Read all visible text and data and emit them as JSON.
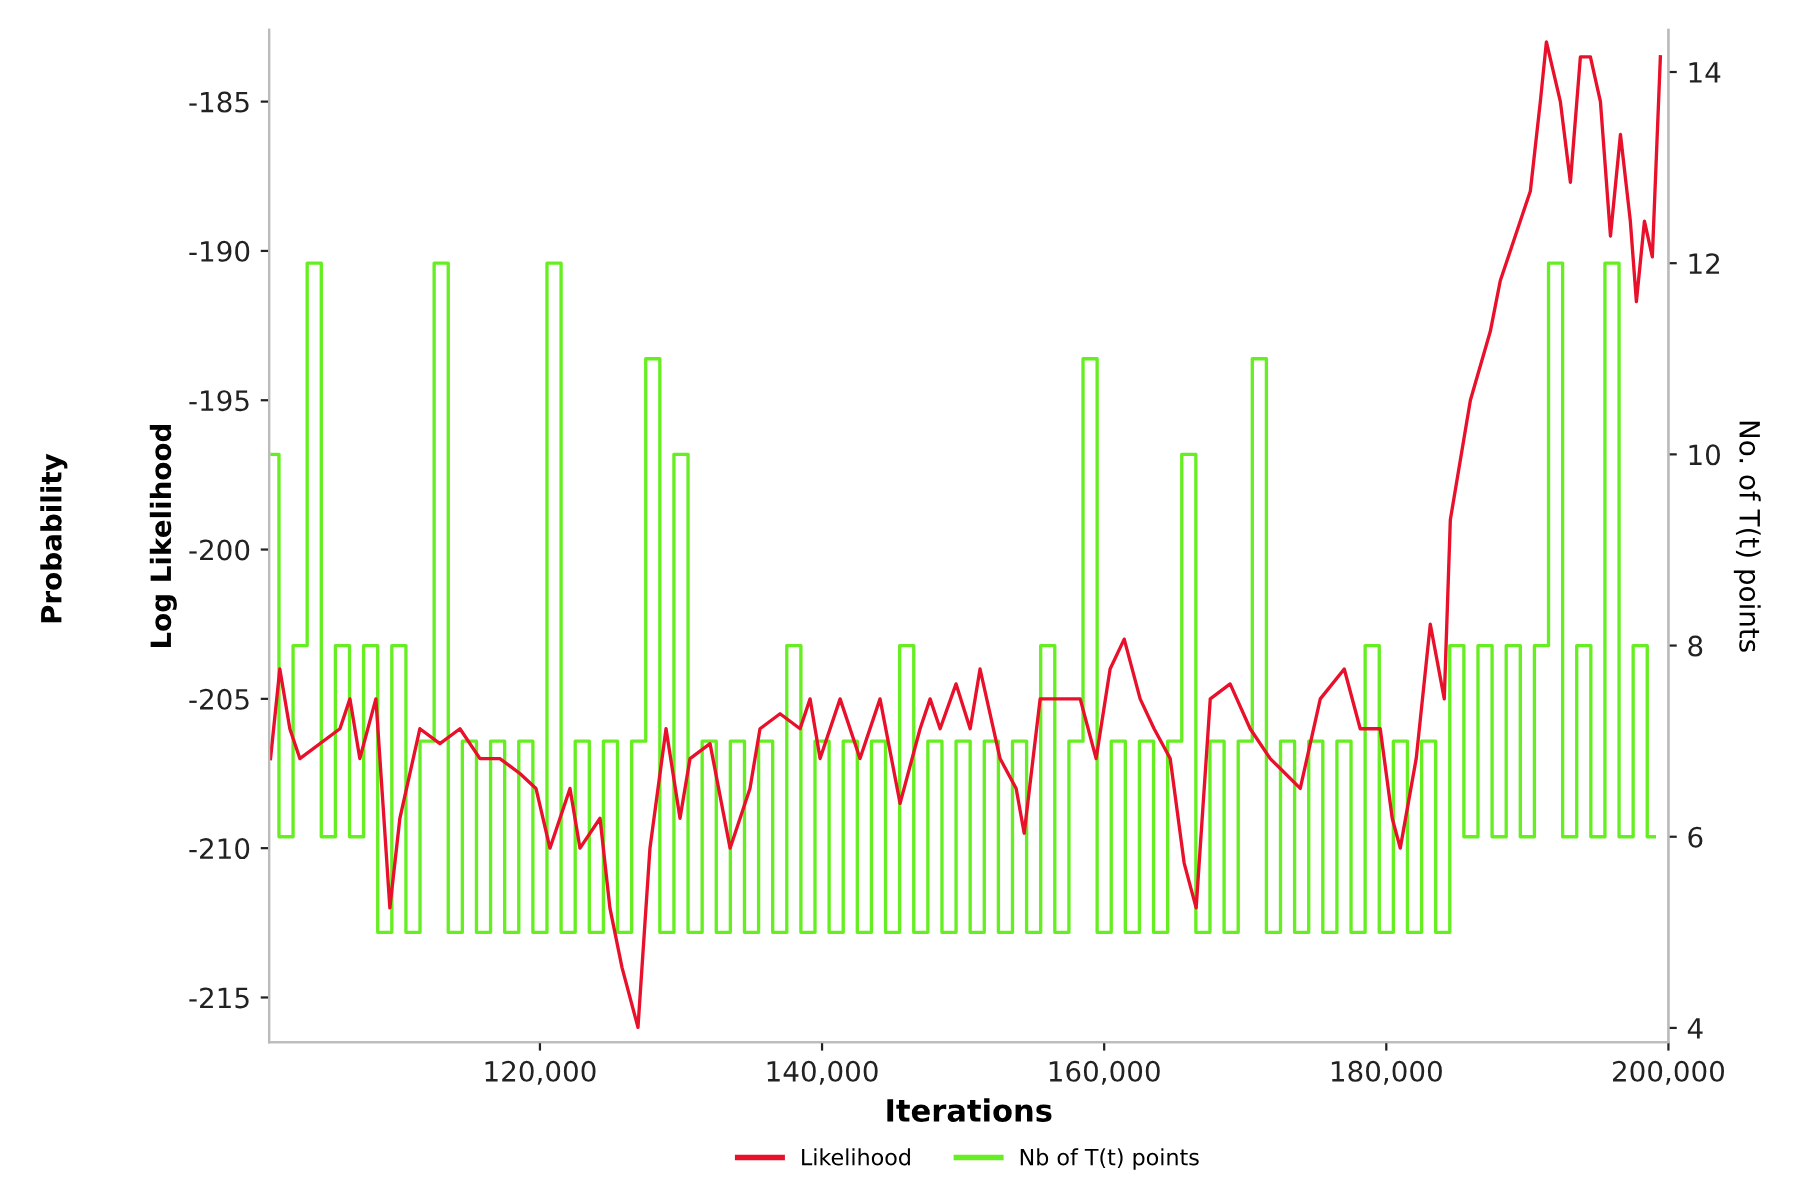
{
  "chart_data": {
    "type": "line",
    "xlabel": "Iterations",
    "ylabel": "Log Likelihood",
    "y2label": "No. of T(t) points",
    "annotations": [
      "Probability"
    ],
    "xlim": [
      100800,
      200000
    ],
    "xticks": [
      {
        "value": 120000,
        "label": "120,000"
      },
      {
        "value": 140000,
        "label": "140,000"
      },
      {
        "value": 160000,
        "label": "160,000"
      },
      {
        "value": 180000,
        "label": "180,000"
      },
      {
        "value": 200000,
        "label": "200,000"
      }
    ],
    "ylim": [
      -216.5,
      -182.6
    ],
    "yticks": [
      -215,
      -210,
      -205,
      -200,
      -195,
      -190,
      -185
    ],
    "y2lim": [
      3.85,
      14.44
    ],
    "y2ticks": [
      4,
      6,
      8,
      10,
      12,
      14
    ],
    "grid": false,
    "legend": "bottom",
    "series": [
      {
        "name": "Likelihood",
        "color": "#e8102a",
        "x": [
          100900,
          101560,
          102270,
          102980,
          105820,
          106530,
          107230,
          108370,
          108940,
          109360,
          110070,
          111490,
          112910,
          114330,
          115750,
          117160,
          118580,
          119720,
          120710,
          122130,
          122840,
          124260,
          124960,
          125820,
          126950,
          127800,
          128940,
          129930,
          130640,
          132060,
          133480,
          134890,
          135600,
          137020,
          138440,
          139150,
          139860,
          141280,
          142690,
          144110,
          145530,
          146950,
          147660,
          148370,
          149500,
          150500,
          151200,
          152620,
          153760,
          154330,
          155460,
          156880,
          158300,
          159430,
          160420,
          161420,
          162550,
          163540,
          164680,
          165670,
          166520,
          167520,
          168930,
          170350,
          171770,
          173900,
          175320,
          177020,
          178150,
          179570,
          180420,
          180990,
          182120,
          183120,
          184110,
          184540,
          185960,
          187370,
          188080,
          189500,
          190210,
          190920,
          191350,
          192340,
          193050,
          193760,
          194470,
          195180,
          195890,
          196600,
          197300,
          197730,
          198300,
          198860,
          199430
        ],
        "values": [
          -207,
          -204,
          -206,
          -207,
          -206,
          -205,
          -207,
          -205,
          -209,
          -212,
          -209,
          -206,
          -206.5,
          -206,
          -207,
          -207,
          -207.5,
          -208,
          -210,
          -208,
          -210,
          -209,
          -212,
          -214,
          -216,
          -210,
          -206,
          -209,
          -207,
          -206.5,
          -210,
          -208,
          -206,
          -205.5,
          -206,
          -205,
          -207,
          -205,
          -207,
          -205,
          -208.5,
          -206,
          -205,
          -206,
          -204.5,
          -206,
          -204,
          -207,
          -208,
          -209.5,
          -205,
          -205,
          -205,
          -207,
          -204,
          -203,
          -205,
          -206,
          -207,
          -210.5,
          -212,
          -205,
          -204.5,
          -206,
          -207,
          -208,
          -205,
          -204,
          -206,
          -206,
          -209,
          -210,
          -207,
          -202.5,
          -205,
          -199,
          -195,
          -192.7,
          -191,
          -189,
          -188,
          -185,
          -183,
          -185,
          -187.7,
          -183.5,
          -183.5,
          -185,
          -189.5,
          -186.1,
          -189,
          -191.7,
          -189,
          -190.2,
          -183.5
        ]
      },
      {
        "name": "Nb of T(t) points",
        "color": "#66ee22",
        "type": "step",
        "axis": "y2",
        "x": [
          101000,
          102000,
          103000,
          104000,
          105000,
          106000,
          107000,
          108000,
          109000,
          110000,
          111000,
          112000,
          113000,
          114000,
          115000,
          116000,
          117000,
          118000,
          119000,
          120000,
          121000,
          122000,
          123000,
          124000,
          125000,
          126000,
          127000,
          128000,
          129000,
          130000,
          131000,
          132000,
          133000,
          134000,
          135000,
          136000,
          137000,
          138000,
          139000,
          140000,
          141000,
          142000,
          143000,
          144000,
          145000,
          146000,
          147000,
          148000,
          149000,
          150000,
          151000,
          152000,
          153000,
          154000,
          155000,
          156000,
          157000,
          158000,
          159000,
          160000,
          161000,
          162000,
          163000,
          164000,
          165000,
          166000,
          167000,
          168000,
          169000,
          170000,
          171000,
          172000,
          173000,
          174000,
          175000,
          176000,
          177000,
          178000,
          179000,
          180000,
          181000,
          182000,
          183000,
          184000,
          185000,
          186000,
          187000,
          188000,
          189000,
          190000,
          191000,
          192000,
          193000,
          194000,
          195000,
          196000,
          197000,
          198000,
          199000
        ],
        "values": [
          10,
          6,
          8,
          12,
          6,
          8,
          6,
          8,
          5,
          8,
          5,
          7,
          12,
          5,
          7,
          5,
          7,
          5,
          7,
          5,
          12,
          5,
          7,
          5,
          7,
          5,
          7,
          11,
          5,
          10,
          5,
          7,
          5,
          7,
          5,
          7,
          5,
          8,
          5,
          7,
          5,
          7,
          5,
          7,
          5,
          8,
          5,
          7,
          5,
          7,
          5,
          7,
          5,
          7,
          5,
          8,
          5,
          7,
          11,
          5,
          7,
          5,
          7,
          5,
          7,
          10,
          5,
          7,
          5,
          7,
          11,
          5,
          7,
          5,
          7,
          5,
          7,
          5,
          8,
          5,
          7,
          5,
          7,
          5,
          8,
          6,
          8,
          6,
          8,
          6,
          8,
          12,
          6,
          8,
          6,
          12,
          6,
          8,
          6
        ]
      }
    ]
  }
}
